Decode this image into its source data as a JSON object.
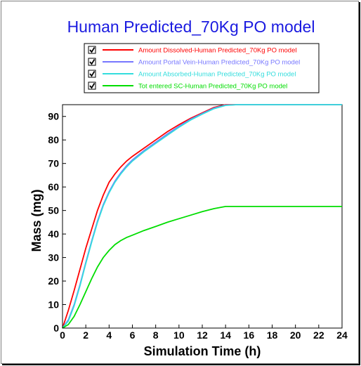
{
  "chart_data": {
    "type": "line",
    "title": "Human Predicted_70Kg PO model",
    "xlabel": "Simulation Time (h)",
    "ylabel": "Mass (mg)",
    "xlim": [
      0,
      24
    ],
    "ylim": [
      0,
      95
    ],
    "xticks": [
      0,
      2,
      4,
      6,
      8,
      10,
      12,
      14,
      16,
      18,
      20,
      22,
      24
    ],
    "yticks": [
      0,
      10,
      20,
      30,
      40,
      50,
      60,
      70,
      80,
      90
    ],
    "grid": false,
    "legend_position": "top",
    "series": [
      {
        "name": "Amount Dissolved-Human Predicted_70Kg PO model",
        "color": "#ff0000",
        "checked": true,
        "x": [
          0,
          0.5,
          1,
          1.5,
          2,
          2.5,
          3,
          3.5,
          4,
          4.5,
          5,
          5.5,
          6,
          7,
          8,
          9,
          10,
          11,
          12,
          13,
          14,
          15,
          16,
          18,
          20,
          22,
          24
        ],
        "y": [
          0,
          7.5,
          16,
          25,
          34,
          42,
          50,
          56.5,
          62,
          65.5,
          68.5,
          71,
          73,
          76.5,
          80,
          83.5,
          86.5,
          89.2,
          91.5,
          93.8,
          95,
          95,
          95,
          95,
          95,
          95,
          95
        ]
      },
      {
        "name": "Amount Portal Vein-Human Predicted_70Kg PO model",
        "color": "#7777ff",
        "checked": true,
        "x": [
          0,
          0.5,
          1,
          1.5,
          2,
          2.5,
          3,
          3.5,
          4,
          4.5,
          5,
          5.5,
          6,
          7,
          8,
          9,
          10,
          11,
          12,
          13,
          14,
          15,
          16,
          18,
          20,
          22,
          24
        ],
        "y": [
          0,
          3.5,
          10,
          18.5,
          28,
          37,
          45.5,
          52.5,
          58,
          62.5,
          66,
          69,
          71.5,
          75.5,
          79,
          82.5,
          85.8,
          88.8,
          91.2,
          93.5,
          94.8,
          95,
          95,
          95,
          95,
          95,
          95
        ]
      },
      {
        "name": "Amount Absorbed-Human Predicted_70Kg PO model",
        "color": "#33dddd",
        "checked": true,
        "x": [
          0,
          0.5,
          1,
          1.5,
          2,
          2.5,
          3,
          3.5,
          4,
          4.5,
          5,
          5.5,
          6,
          7,
          8,
          9,
          10,
          11,
          12,
          13,
          14,
          15,
          16,
          18,
          20,
          22,
          24
        ],
        "y": [
          0,
          3,
          9.5,
          18,
          27.5,
          36.5,
          45,
          52,
          57.5,
          62,
          65.5,
          68.5,
          71,
          75,
          78.5,
          82,
          85.4,
          88.5,
          91,
          93.3,
          94.7,
          95,
          95,
          95,
          95,
          95,
          95
        ]
      },
      {
        "name": "Tot entered SC-Human Predicted_70Kg PO model",
        "color": "#00dd00",
        "checked": true,
        "x": [
          0,
          0.5,
          1,
          1.5,
          2,
          2.5,
          3,
          3.5,
          4,
          4.5,
          5,
          5.5,
          6,
          7,
          8,
          9,
          10,
          11,
          12,
          13,
          14,
          15,
          16,
          18,
          20,
          22,
          24
        ],
        "y": [
          0,
          1.5,
          5,
          10,
          15.5,
          21,
          26,
          30,
          33,
          35.5,
          37.2,
          38.5,
          39.5,
          41.5,
          43.2,
          45,
          46.5,
          48,
          49.5,
          50.8,
          51.7,
          51.7,
          51.7,
          51.7,
          51.7,
          51.7,
          51.7
        ]
      }
    ]
  }
}
